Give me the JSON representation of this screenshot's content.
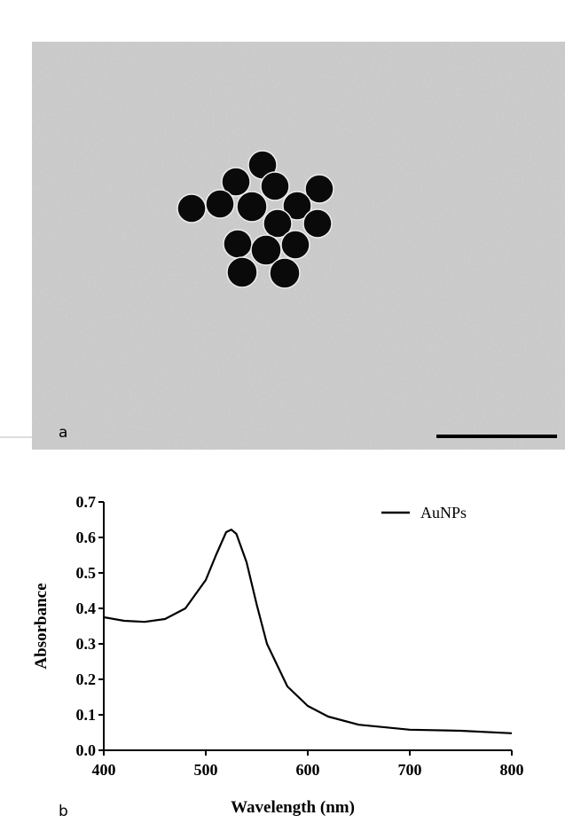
{
  "image_panel": {
    "label": "a"
  },
  "chart_data": {
    "type": "line",
    "panel_label": "b",
    "xlabel": "Wavelength (nm)",
    "ylabel": "Absorbance",
    "x": [
      400,
      420,
      440,
      460,
      480,
      500,
      510,
      520,
      525,
      530,
      540,
      550,
      560,
      580,
      600,
      620,
      650,
      700,
      750,
      800
    ],
    "series": [
      {
        "name": "AuNPs",
        "color": "#000000",
        "values": [
          0.375,
          0.365,
          0.362,
          0.37,
          0.4,
          0.48,
          0.55,
          0.615,
          0.622,
          0.61,
          0.53,
          0.41,
          0.3,
          0.18,
          0.125,
          0.095,
          0.072,
          0.058,
          0.055,
          0.048
        ]
      }
    ],
    "xlim": [
      400,
      800
    ],
    "xticks": [
      400,
      500,
      600,
      700,
      800
    ],
    "ylim": [
      0,
      0.7
    ],
    "yticks": [
      {
        "value": 0,
        "label": "0.0"
      },
      0.1,
      0.2,
      0.3,
      0.4,
      0.5,
      0.6,
      0.7
    ],
    "legend": "upper right"
  }
}
